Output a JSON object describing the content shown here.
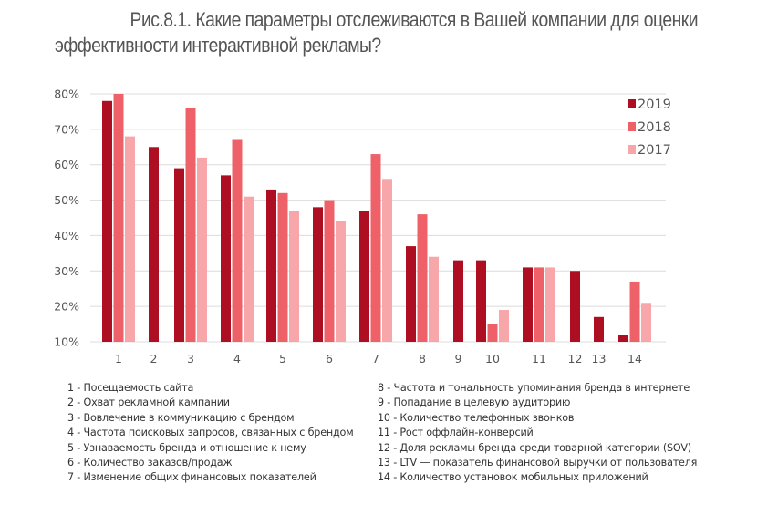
{
  "title_line1": "Рис.8.1. Какие параметры отслеживаются в Вашей компании для оценки",
  "title_line2": "эффективности интерактивной рекламы?",
  "colors": {
    "2019": "#ae0e22",
    "2018": "#ef6168",
    "2017": "#f7a7a9",
    "grid": "#dcdcdc",
    "text": "#555555"
  },
  "chart_data": {
    "type": "bar",
    "title": "Рис.8.1. Какие параметры отслеживаются в Вашей компании для оценки эффективности интерактивной рекламы?",
    "xlabel": "",
    "ylabel": "",
    "ylim": [
      10,
      80
    ],
    "yticks": [
      "10%",
      "20%",
      "30%",
      "40%",
      "50%",
      "60%",
      "70%",
      "80%"
    ],
    "ytick_values": [
      10,
      20,
      30,
      40,
      50,
      60,
      70,
      80
    ],
    "grid": true,
    "legend_position": "top-right",
    "categories": [
      "1",
      "2",
      "3",
      "4",
      "5",
      "6",
      "7",
      "8",
      "9",
      "10",
      "11",
      "12",
      "13",
      "14"
    ],
    "series": [
      {
        "name": "2019",
        "color": "#ae0e22",
        "values": [
          78,
          65,
          59,
          57,
          53,
          48,
          47,
          37,
          33,
          33,
          31,
          30,
          17,
          12
        ]
      },
      {
        "name": "2018",
        "color": "#ef6168",
        "values": [
          80,
          null,
          76,
          67,
          52,
          50,
          63,
          46,
          null,
          15,
          31,
          null,
          null,
          27
        ]
      },
      {
        "name": "2017",
        "color": "#f7a7a9",
        "values": [
          68,
          null,
          62,
          51,
          47,
          44,
          56,
          34,
          null,
          19,
          31,
          null,
          null,
          21
        ]
      }
    ]
  },
  "category_legend": [
    "1 - Посещаемость сайта",
    "2 - Охват рекламной кампании",
    "3 - Вовлечение в коммуникацию с брендом",
    "4 - Частота поисковых запросов, связанных с брендом",
    "5 - Узнаваемость бренда и отношение к нему",
    "6 - Количество заказов/продаж",
    "7 - Изменение общих финансовых показателей",
    "8 - Частота и тональность упоминания бренда в интернете",
    "9 - Попадание в целевую аудиторию",
    "10 - Количество телефонных звонков",
    "11 - Рост оффлайн-конверсий",
    "12 - Доля рекламы бренда среди товарной категории (SOV)",
    "13 - LTV — показатель финансовой выручки от пользователя",
    "14 - Количество установок мобильных приложений"
  ]
}
